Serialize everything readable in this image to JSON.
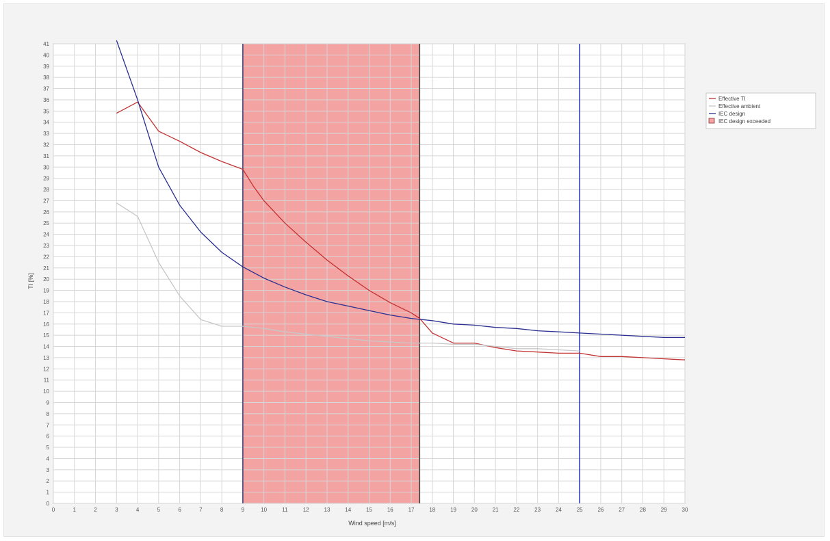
{
  "chart_data": {
    "type": "line",
    "title": "",
    "subtitle": "",
    "xlabel": "Wind speed [m/s]",
    "ylabel": "TI [%]",
    "xlim": [
      0,
      30
    ],
    "ylim": [
      0,
      41
    ],
    "x_ticks": [
      0,
      1,
      2,
      3,
      4,
      5,
      6,
      7,
      8,
      9,
      10,
      11,
      12,
      13,
      14,
      15,
      16,
      17,
      18,
      19,
      20,
      21,
      22,
      23,
      24,
      25,
      26,
      27,
      28,
      29,
      30
    ],
    "y_ticks": [
      0,
      1,
      2,
      3,
      4,
      5,
      6,
      7,
      8,
      9,
      10,
      11,
      12,
      13,
      14,
      15,
      16,
      17,
      18,
      19,
      20,
      21,
      22,
      23,
      24,
      25,
      26,
      27,
      28,
      29,
      30,
      31,
      32,
      33,
      34,
      35,
      36,
      37,
      38,
      39,
      40,
      41
    ],
    "grid": true,
    "legend_position": "right",
    "shaded_region": {
      "x_start": 9,
      "x_end": 17.4,
      "color": "#f4a3a3",
      "label": "IEC design exceeded"
    },
    "vertical_lines": [
      {
        "x": 9,
        "color": "#3a3a6a"
      },
      {
        "x": 17.4,
        "color": "#3a3a3a"
      },
      {
        "x": 25,
        "color": "#1e2bb0"
      }
    ],
    "series": [
      {
        "name": "Effective TI",
        "color": "#c23232",
        "x": [
          3,
          4,
          5,
          6,
          7,
          8,
          9,
          9.5,
          10,
          11,
          12,
          13,
          14,
          15,
          16,
          17,
          17.4,
          18,
          19,
          20,
          21,
          22,
          23,
          24,
          25,
          26,
          27,
          28,
          29,
          30
        ],
        "y": [
          34.8,
          35.8,
          33.2,
          32.3,
          31.3,
          30.5,
          29.8,
          28.3,
          27.0,
          25.0,
          23.3,
          21.7,
          20.3,
          19.0,
          17.9,
          17.0,
          16.5,
          15.2,
          14.3,
          14.3,
          13.9,
          13.6,
          13.5,
          13.4,
          13.4,
          13.1,
          13.1,
          13.0,
          12.9,
          12.8
        ]
      },
      {
        "name": "Effective ambient",
        "color": "#c7c7c7",
        "x": [
          3,
          4,
          5,
          6,
          7,
          8,
          9,
          10,
          11,
          12,
          13,
          14,
          15,
          16,
          17,
          18,
          19,
          20,
          21,
          22,
          23,
          24,
          25
        ],
        "y": [
          26.8,
          25.6,
          21.5,
          18.5,
          16.4,
          15.8,
          15.8,
          15.6,
          15.3,
          15.1,
          14.9,
          14.7,
          14.5,
          14.4,
          14.3,
          14.3,
          14.2,
          14.2,
          14.0,
          13.8,
          13.8,
          13.7,
          13.6
        ]
      },
      {
        "name": "IEC design",
        "color": "#2a2f8f",
        "x": [
          3,
          4,
          5,
          6,
          7,
          8,
          9,
          10,
          11,
          12,
          13,
          14,
          15,
          16,
          17,
          18,
          19,
          20,
          21,
          22,
          23,
          24,
          25,
          26,
          27,
          28,
          29,
          30
        ],
        "y": [
          41.3,
          36.0,
          30.0,
          26.6,
          24.2,
          22.4,
          21.1,
          20.1,
          19.3,
          18.6,
          18.0,
          17.6,
          17.2,
          16.8,
          16.5,
          16.3,
          16.0,
          15.9,
          15.7,
          15.6,
          15.4,
          15.3,
          15.2,
          15.1,
          15.0,
          14.9,
          14.8,
          14.8
        ]
      }
    ],
    "legend": [
      {
        "label": "Effective TI",
        "kind": "line",
        "color": "#c23232"
      },
      {
        "label": "Effective ambient",
        "kind": "line",
        "color": "#c7c7c7"
      },
      {
        "label": "IEC design",
        "kind": "line",
        "color": "#2a2f8f"
      },
      {
        "label": "IEC design exceeded",
        "kind": "box",
        "color": "#f4a3a3"
      }
    ]
  }
}
